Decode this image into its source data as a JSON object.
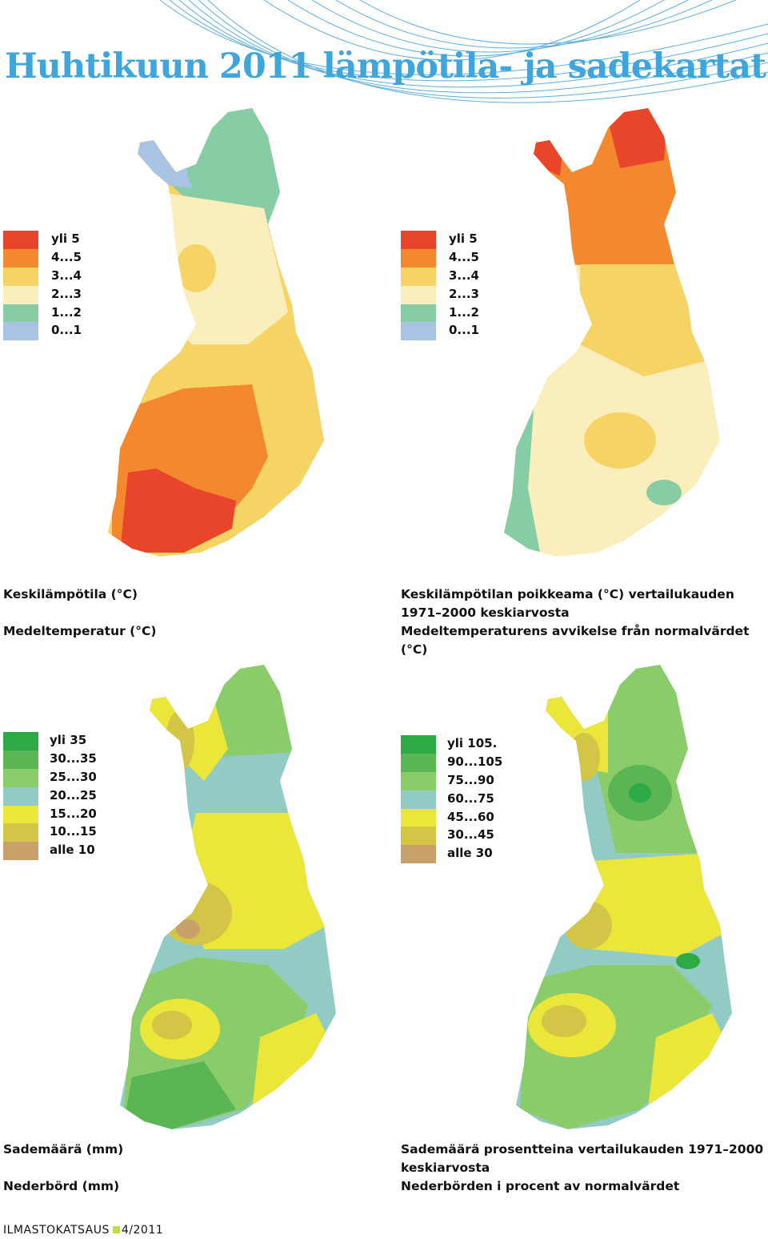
{
  "title": "Huhtikuun 2011 lämpötila- ja sadekartat",
  "colors": {
    "title": "#3ea6dc",
    "temp": [
      "#e8452a",
      "#f3882f",
      "#f6d365",
      "#fbeebd",
      "#86cca4",
      "#a8c3e3"
    ],
    "prec": [
      "#2daa46",
      "#5ab654",
      "#8acb6a",
      "#92cbc4",
      "#ebe63a",
      "#d3c546",
      "#c8a06a"
    ]
  },
  "maps": [
    {
      "id": "temp-mean",
      "legend": [
        "yli 5",
        "4...5",
        "3...4",
        "2...3",
        "1...2",
        "0...1"
      ],
      "caption_fi": "Keskilämpötila (°C)",
      "caption_sv": "Medeltemperatur (°C)"
    },
    {
      "id": "temp-anomaly",
      "legend": [
        "yli 5",
        "4...5",
        "3...4",
        "2...3",
        "1...2",
        "0...1"
      ],
      "caption_fi": "Keskilämpötilan poikkeama (°C) vertailukauden 1971–2000 keskiarvosta",
      "caption_sv": "Medeltemperaturens avvikelse från normalvärdet (°C)"
    },
    {
      "id": "precip-mm",
      "legend": [
        "yli 35",
        "30...35",
        "25...30",
        "20...25",
        "15...20",
        "10...15",
        "alle 10"
      ],
      "caption_fi": "Sademäärä (mm)",
      "caption_sv": "Nederbörd (mm)"
    },
    {
      "id": "precip-pct",
      "legend": [
        "yli 105.",
        "90...105",
        "75...90",
        "60...75",
        "45...60",
        "30...45",
        "alle 30"
      ],
      "caption_fi": "Sademäärä prosentteina vertailukauden 1971–2000 keskiarvosta",
      "caption_sv": "Nederbörden i procent av normalvärdet"
    }
  ],
  "footer": {
    "publication": "ILMASTOKATSAUS",
    "issue": "4/2011"
  }
}
